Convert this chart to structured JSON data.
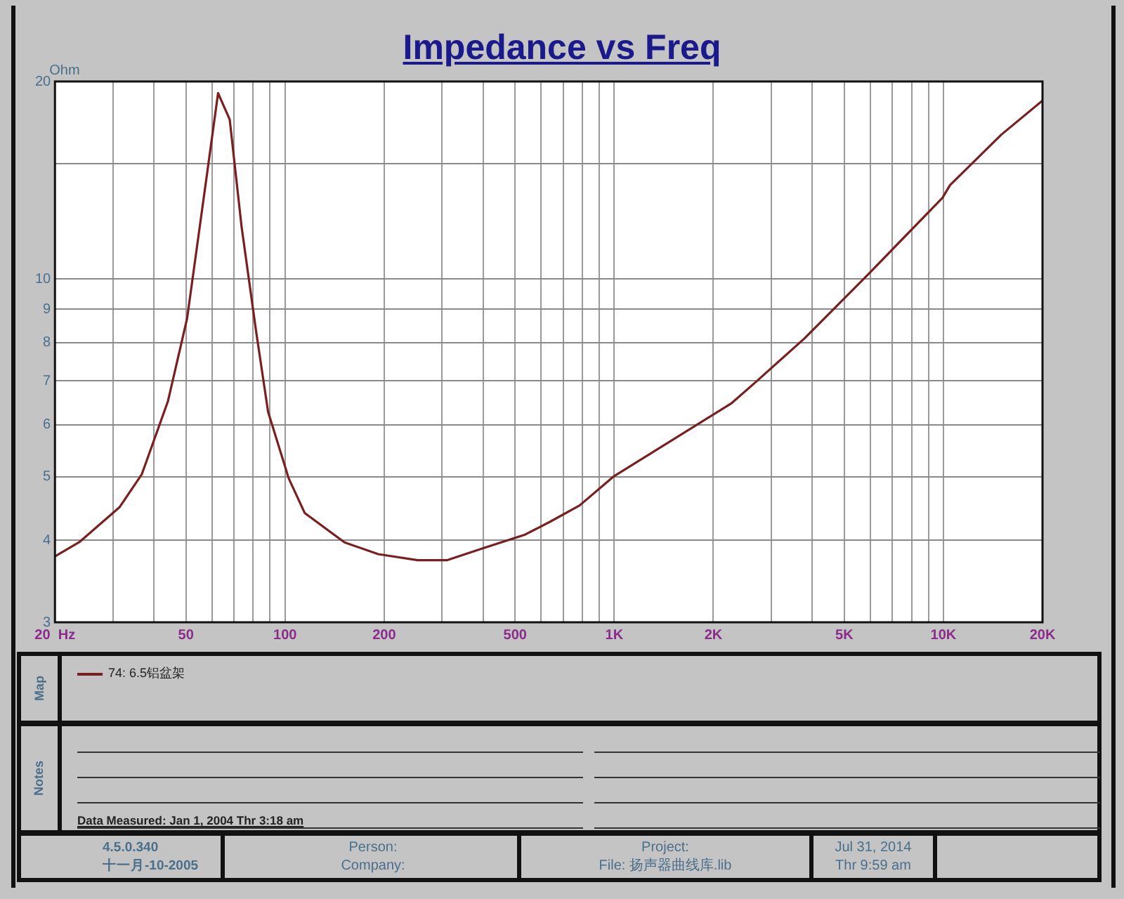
{
  "chart_data": {
    "type": "line",
    "title": "Impedance vs Freq",
    "ylabel": "Ohm",
    "log": "xy",
    "grid": true,
    "legend": "bottom",
    "marker": "none",
    "line_style": "solid",
    "xlim": [
      20,
      20000
    ],
    "ylim": [
      3,
      20
    ],
    "xticks": [
      {
        "value": 20,
        "label": "20  Hz"
      },
      {
        "value": 30,
        "label": null
      },
      {
        "value": 40,
        "label": null
      },
      50,
      {
        "value": 60,
        "label": null
      },
      {
        "value": 70,
        "label": null
      },
      {
        "value": 80,
        "label": null
      },
      {
        "value": 90,
        "label": null
      },
      100,
      200,
      {
        "value": 300,
        "label": null
      },
      {
        "value": 400,
        "label": null
      },
      500,
      {
        "value": 600,
        "label": null
      },
      {
        "value": 700,
        "label": null
      },
      {
        "value": 800,
        "label": null
      },
      {
        "value": 900,
        "label": null
      },
      {
        "value": 1000,
        "label": "1K"
      },
      {
        "value": 2000,
        "label": "2K"
      },
      {
        "value": 3000,
        "label": null
      },
      {
        "value": 4000,
        "label": null
      },
      {
        "value": 5000,
        "label": "5K"
      },
      {
        "value": 6000,
        "label": null
      },
      {
        "value": 7000,
        "label": null
      },
      {
        "value": 8000,
        "label": null
      },
      {
        "value": 9000,
        "label": null
      },
      {
        "value": 10000,
        "label": "10K"
      },
      {
        "value": 20000,
        "label": "20K"
      }
    ],
    "yticks": [
      3,
      4,
      5,
      6,
      7,
      8,
      9,
      10,
      {
        "value": 15,
        "label": null
      },
      20
    ],
    "x": [
      20,
      23.8,
      31.4,
      36.7,
      44.1,
      50.4,
      58.2,
      62.6,
      67.9,
      73.8,
      81.8,
      88.8,
      102.6,
      114.8,
      151.6,
      191.9,
      253,
      311,
      394,
      536,
      639,
      785,
      994,
      2263,
      2692,
      3783,
      5945,
      9937,
      10470,
      15000,
      20000
    ],
    "series": [
      {
        "name": "74: 6.5铝盆架",
        "color": "#7a1f1f",
        "values": [
          3.78,
          3.98,
          4.49,
          5.04,
          6.52,
          8.71,
          14.7,
          19.2,
          17.5,
          12.0,
          8.28,
          6.28,
          4.97,
          4.4,
          3.97,
          3.81,
          3.73,
          3.73,
          3.88,
          4.08,
          4.27,
          4.52,
          5.0,
          6.46,
          6.97,
          8.12,
          10.2,
          13.3,
          13.9,
          16.6,
          18.7
        ]
      }
    ],
    "annotations": [
      "Data Measured: Jan  1, 2004  Thr  3:18 am",
      "4.5.0.340",
      "十一月-10-2005",
      "Person:",
      "Company:",
      "Project:",
      "File: 扬声器曲线库.lib",
      "Jul 31, 2014",
      "Thr  9:59 am",
      "Map",
      "Notes"
    ]
  }
}
